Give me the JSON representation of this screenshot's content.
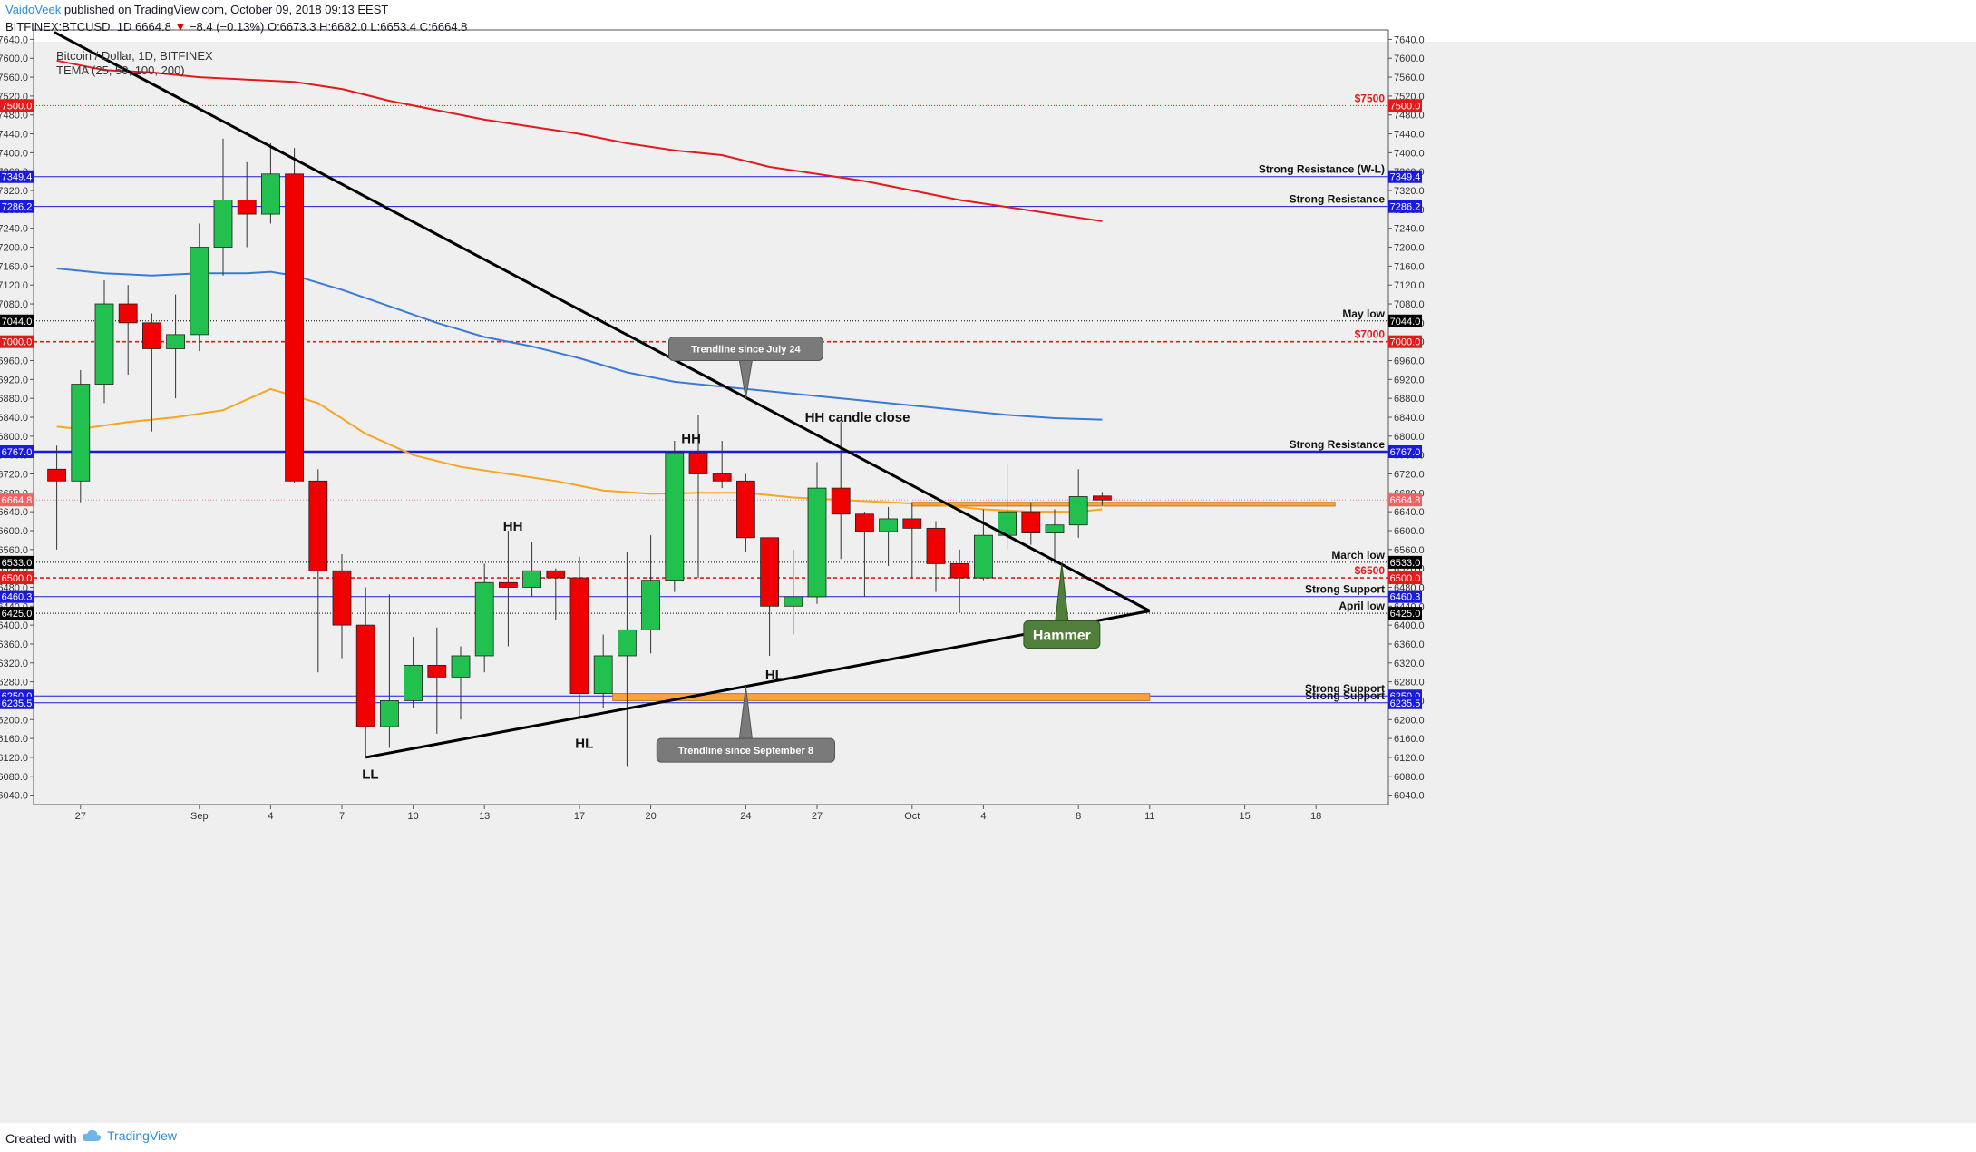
{
  "header": {
    "author": "VaidoVeek",
    "published": " published on TradingView.com, October 09, 2018 09:13 EEST",
    "symbol": "BITFINEX:BTCUSD, 1D",
    "last": "6664.8",
    "arrow": "▼",
    "change": "−8.4 (−0.13%)",
    "ohlc": "O:6673.3 H:6682.0 L:6653.4 C:6664.8"
  },
  "legend": {
    "title": "Bitcoin / Dollar, 1D, BITFINEX",
    "indicator": "TEMA (25, 50, 100, 200)"
  },
  "footer": {
    "created": "Created with",
    "brand": "TradingView"
  },
  "colors": {
    "up": "#22c14f",
    "down": "#f00000",
    "tema25": "#f5a623",
    "tema100": "#3a7bd5",
    "tema200": "#e31a1c",
    "support_blue": "#1a1adb",
    "zone": "#f7a340",
    "background": "#efefef"
  },
  "chart_data": {
    "type": "candlestick",
    "ylim": [
      6020,
      7660
    ],
    "y_ticks": [
      6040,
      6080,
      6120,
      6160,
      6200,
      6240,
      6280,
      6320,
      6360,
      6400,
      6440,
      6480,
      6520,
      6560,
      6600,
      6640,
      6680,
      6720,
      6760,
      6800,
      6840,
      6880,
      6920,
      6960,
      7000,
      7040,
      7080,
      7120,
      7160,
      7200,
      7240,
      7280,
      7320,
      7360,
      7400,
      7440,
      7480,
      7520,
      7560,
      7600,
      7640
    ],
    "x_ticks": [
      {
        "label": "27",
        "d": -11
      },
      {
        "label": "Sep",
        "d": -6
      },
      {
        "label": "4",
        "d": -3
      },
      {
        "label": "7",
        "d": 0
      },
      {
        "label": "10",
        "d": 3
      },
      {
        "label": "13",
        "d": 6
      },
      {
        "label": "17",
        "d": 10
      },
      {
        "label": "20",
        "d": 13
      },
      {
        "label": "24",
        "d": 17
      },
      {
        "label": "27",
        "d": 20
      },
      {
        "label": "Oct",
        "d": 24
      },
      {
        "label": "4",
        "d": 27
      },
      {
        "label": "8",
        "d": 31
      },
      {
        "label": "11",
        "d": 34
      },
      {
        "label": "15",
        "d": 38
      },
      {
        "label": "18",
        "d": 41
      }
    ],
    "candles": [
      {
        "d": -12,
        "o": 6730,
        "h": 6780,
        "l": 6560,
        "c": 6705
      },
      {
        "d": -11,
        "o": 6705,
        "h": 6940,
        "l": 6660,
        "c": 6910
      },
      {
        "d": -10,
        "o": 6910,
        "h": 7130,
        "l": 6870,
        "c": 7080
      },
      {
        "d": -9,
        "o": 7080,
        "h": 7120,
        "l": 6930,
        "c": 7040
      },
      {
        "d": -8,
        "o": 7040,
        "h": 7060,
        "l": 6810,
        "c": 6985
      },
      {
        "d": -7,
        "o": 6985,
        "h": 7100,
        "l": 6880,
        "c": 7015
      },
      {
        "d": -6,
        "o": 7015,
        "h": 7250,
        "l": 6980,
        "c": 7200
      },
      {
        "d": -5,
        "o": 7200,
        "h": 7430,
        "l": 7140,
        "c": 7300
      },
      {
        "d": -4,
        "o": 7300,
        "h": 7380,
        "l": 7200,
        "c": 7270
      },
      {
        "d": -3,
        "o": 7270,
        "h": 7420,
        "l": 7250,
        "c": 7355
      },
      {
        "d": -2,
        "o": 7355,
        "h": 7410,
        "l": 6700,
        "c": 6705
      },
      {
        "d": -1,
        "o": 6705,
        "h": 6730,
        "l": 6300,
        "c": 6515
      },
      {
        "d": 0,
        "o": 6515,
        "h": 6550,
        "l": 6330,
        "c": 6400
      },
      {
        "d": 1,
        "o": 6400,
        "h": 6480,
        "l": 6120,
        "c": 6185
      },
      {
        "d": 2,
        "o": 6185,
        "h": 6465,
        "l": 6140,
        "c": 6240
      },
      {
        "d": 3,
        "o": 6240,
        "h": 6375,
        "l": 6225,
        "c": 6315
      },
      {
        "d": 4,
        "o": 6315,
        "h": 6395,
        "l": 6170,
        "c": 6290
      },
      {
        "d": 5,
        "o": 6290,
        "h": 6355,
        "l": 6200,
        "c": 6335
      },
      {
        "d": 6,
        "o": 6335,
        "h": 6530,
        "l": 6300,
        "c": 6490
      },
      {
        "d": 7,
        "o": 6490,
        "h": 6600,
        "l": 6355,
        "c": 6480
      },
      {
        "d": 8,
        "o": 6480,
        "h": 6575,
        "l": 6460,
        "c": 6515
      },
      {
        "d": 9,
        "o": 6515,
        "h": 6520,
        "l": 6410,
        "c": 6500
      },
      {
        "d": 10,
        "o": 6500,
        "h": 6545,
        "l": 6200,
        "c": 6255
      },
      {
        "d": 11,
        "o": 6255,
        "h": 6380,
        "l": 6225,
        "c": 6335
      },
      {
        "d": 12,
        "o": 6335,
        "h": 6555,
        "l": 6100,
        "c": 6390
      },
      {
        "d": 13,
        "o": 6390,
        "h": 6590,
        "l": 6340,
        "c": 6495
      },
      {
        "d": 14,
        "o": 6495,
        "h": 6790,
        "l": 6470,
        "c": 6765
      },
      {
        "d": 15,
        "o": 6765,
        "h": 6845,
        "l": 6500,
        "c": 6720
      },
      {
        "d": 16,
        "o": 6720,
        "h": 6790,
        "l": 6690,
        "c": 6705
      },
      {
        "d": 17,
        "o": 6705,
        "h": 6720,
        "l": 6555,
        "c": 6585
      },
      {
        "d": 18,
        "o": 6585,
        "h": 6585,
        "l": 6335,
        "c": 6440
      },
      {
        "d": 19,
        "o": 6440,
        "h": 6560,
        "l": 6380,
        "c": 6460
      },
      {
        "d": 20,
        "o": 6460,
        "h": 6745,
        "l": 6445,
        "c": 6690
      },
      {
        "d": 21,
        "o": 6690,
        "h": 6830,
        "l": 6540,
        "c": 6635
      },
      {
        "d": 22,
        "o": 6635,
        "h": 6640,
        "l": 6460,
        "c": 6598
      },
      {
        "d": 23,
        "o": 6598,
        "h": 6650,
        "l": 6525,
        "c": 6625
      },
      {
        "d": 24,
        "o": 6625,
        "h": 6660,
        "l": 6500,
        "c": 6605
      },
      {
        "d": 25,
        "o": 6605,
        "h": 6620,
        "l": 6470,
        "c": 6530
      },
      {
        "d": 26,
        "o": 6530,
        "h": 6560,
        "l": 6425,
        "c": 6500
      },
      {
        "d": 27,
        "o": 6500,
        "h": 6645,
        "l": 6495,
        "c": 6590
      },
      {
        "d": 28,
        "o": 6590,
        "h": 6740,
        "l": 6560,
        "c": 6640
      },
      {
        "d": 29,
        "o": 6640,
        "h": 6660,
        "l": 6570,
        "c": 6595
      },
      {
        "d": 30,
        "o": 6595,
        "h": 6645,
        "l": 6530,
        "c": 6612
      },
      {
        "d": 31,
        "o": 6612,
        "h": 6730,
        "l": 6585,
        "c": 6672
      },
      {
        "d": 32,
        "o": 6673.3,
        "h": 6682,
        "l": 6653.4,
        "c": 6664.8
      }
    ],
    "series": [
      {
        "name": "TEMA 25",
        "d": [
          -12,
          -11,
          -9,
          -7,
          -5,
          -3,
          -1,
          1,
          3,
          5,
          7,
          9,
          11,
          13,
          15,
          17,
          19,
          21,
          23,
          25,
          27,
          29,
          31,
          32
        ],
        "values": [
          6820,
          6815,
          6830,
          6840,
          6855,
          6900,
          6870,
          6805,
          6760,
          6735,
          6720,
          6705,
          6685,
          6678,
          6680,
          6680,
          6670,
          6665,
          6660,
          6655,
          6645,
          6640,
          6640,
          6645
        ]
      },
      {
        "name": "TEMA 100",
        "d": [
          -12,
          -10,
          -8,
          -6,
          -4,
          -3,
          -2,
          0,
          2,
          4,
          6,
          8,
          10,
          12,
          14,
          16,
          18,
          20,
          22,
          24,
          26,
          28,
          30,
          32
        ],
        "values": [
          7155,
          7145,
          7140,
          7145,
          7145,
          7148,
          7140,
          7110,
          7075,
          7040,
          7010,
          6990,
          6965,
          6935,
          6915,
          6905,
          6895,
          6885,
          6875,
          6865,
          6855,
          6845,
          6838,
          6835
        ]
      },
      {
        "name": "TEMA 200",
        "d": [
          -12,
          -10,
          -8,
          -6,
          -4,
          -2,
          0,
          2,
          4,
          6,
          8,
          10,
          12,
          14,
          16,
          18,
          20,
          22,
          24,
          26,
          28,
          30,
          32
        ],
        "values": [
          7595,
          7575,
          7570,
          7560,
          7555,
          7550,
          7535,
          7510,
          7490,
          7470,
          7455,
          7440,
          7420,
          7405,
          7395,
          7370,
          7355,
          7340,
          7320,
          7300,
          7285,
          7270,
          7255
        ]
      }
    ],
    "price_levels": [
      {
        "value": 7500,
        "label": "$7500",
        "color": "#e31a1c",
        "style": "dotted",
        "badge": "7500.0",
        "badge_color": "#e31a1c"
      },
      {
        "value": 7349.4,
        "label": "Strong Resistance (W-L)",
        "color": "#1a1adb",
        "style": "solid",
        "badge": "7349.4",
        "badge_color": "#1a1adb"
      },
      {
        "value": 7286.2,
        "label": "Strong Resistance",
        "color": "#1a1adb",
        "style": "solid",
        "badge": "7286.2",
        "badge_color": "#1a1adb"
      },
      {
        "value": 7044,
        "label": "May low",
        "color": "#000000",
        "style": "dotted",
        "badge": "7044.0",
        "badge_color": "#000000"
      },
      {
        "value": 7000,
        "label": "$7000",
        "color": "#e31a1c",
        "style": "dashed",
        "badge": "7000.0",
        "badge_color": "#e31a1c"
      },
      {
        "value": 6767,
        "label": "Strong Resistance",
        "color": "#1a1adb",
        "style": "thick",
        "badge": "6767.0",
        "badge_color": "#1a1adb"
      },
      {
        "value": 6664.8,
        "label": "",
        "color": "#f08080",
        "style": "dotted",
        "badge": "6664.8",
        "badge_color": "#f06262"
      },
      {
        "value": 6533,
        "label": "March low",
        "color": "#000000",
        "style": "dotted",
        "badge": "6533.0",
        "badge_color": "#000000"
      },
      {
        "value": 6500,
        "label": "$6500",
        "color": "#e31a1c",
        "style": "dashed",
        "badge": "6500.0",
        "badge_color": "#e31a1c"
      },
      {
        "value": 6460.3,
        "label": "Strong Support",
        "color": "#1a1adb",
        "style": "solid",
        "badge": "6460.3",
        "badge_color": "#1a1adb"
      },
      {
        "value": 6425,
        "label": "April low",
        "color": "#000000",
        "style": "dotted",
        "badge": "6425.0",
        "badge_color": "#000000"
      },
      {
        "value": 6250,
        "label": "Strong Support",
        "color": "#1a1adb",
        "style": "solid",
        "badge": "6250.0",
        "badge_color": "#1a1adb"
      },
      {
        "value": 6235.5,
        "label": "Strong Support",
        "color": "#1a1adb",
        "style": "solid",
        "badge": "6235.5",
        "badge_color": "#1a1adb"
      }
    ],
    "zones": [
      {
        "d1": 24,
        "d2": 41.8,
        "top": 6660,
        "bottom": 6652
      },
      {
        "d1": 11.4,
        "d2": 34,
        "top": 6255,
        "bottom": 6240
      }
    ],
    "trendlines": [
      {
        "d1": -12.1,
        "v1": 7655,
        "d2": 34,
        "v2": 6430
      },
      {
        "d1": 1,
        "v1": 6120,
        "d2": 34,
        "v2": 6430
      }
    ],
    "annotations": [
      {
        "text": "HH",
        "d": 14.7,
        "v": 6785
      },
      {
        "text": "HH candle close",
        "d": 21.7,
        "v": 6830
      },
      {
        "text": "HH",
        "d": 7.2,
        "v": 6600
      },
      {
        "text": "HL",
        "d": 18.2,
        "v": 6285
      },
      {
        "text": "HL",
        "d": 10.2,
        "v": 6140
      },
      {
        "text": "LL",
        "d": 1.2,
        "v": 6075
      }
    ],
    "callouts": [
      {
        "text": "Trendline since July 24",
        "d": 17,
        "v": 6985,
        "tip_v": 6880,
        "dir": "down"
      },
      {
        "text": "Trendline since September 8",
        "d": 17,
        "v": 6135,
        "tip_v": 6270,
        "dir": "up"
      },
      {
        "text": "Hammer",
        "d": 30.3,
        "v": 6380,
        "tip_v": 6530,
        "dir": "up",
        "style": "green"
      }
    ]
  }
}
